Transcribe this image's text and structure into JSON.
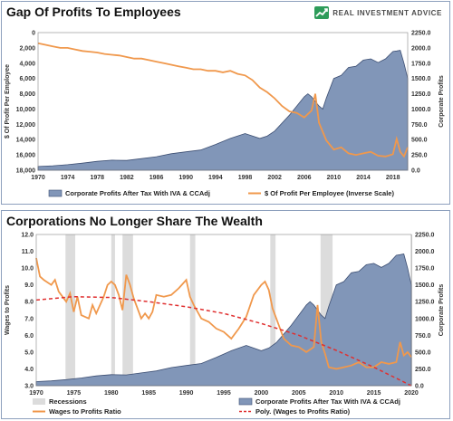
{
  "logo": {
    "text": "REAL INVESTMENT ADVICE",
    "icon": "trend-arrow-icon",
    "color": "#2e9c5a"
  },
  "colors": {
    "area_fill": "#8196b8",
    "area_stroke": "#3d4f73",
    "line": "#f0984c",
    "poly": "#e03030",
    "recession": "#dcdcdc"
  },
  "chart_data": [
    {
      "type": "area",
      "title": "Gap Of Profits To Employees",
      "xlabel": "",
      "ylabel_left": "$ Of Profit Per Employee",
      "ylabel_right": "Corporate Profits",
      "xlim": [
        1970,
        2020
      ],
      "x_ticks": [
        "1970",
        "1974",
        "1978",
        "1982",
        "1986",
        "1990",
        "1994",
        "1998",
        "2002",
        "2006",
        "2010",
        "2014",
        "2018"
      ],
      "y_left_ticks": [
        "0",
        "2,000",
        "4,000",
        "6,000",
        "8,000",
        "10,000",
        "12,000",
        "14,000",
        "16,000",
        "18,000"
      ],
      "y_left_inverted": true,
      "y_left_lim": [
        0,
        18000
      ],
      "y_right_ticks": [
        "0.0",
        "250.0",
        "500.0",
        "750.0",
        "1000.0",
        "1250.0",
        "1500.0",
        "1750.0",
        "2000.0",
        "2250.0"
      ],
      "y_right_lim": [
        0,
        2250
      ],
      "legend": [
        "Corporate Profits After Tax With IVA & CCAdj",
        "$ Of Profit Per Employee (Inverse Scale)"
      ],
      "series": [
        {
          "name": "Corporate Profits After Tax With IVA & CCAdj",
          "axis": "right",
          "x": [
            1970,
            1972,
            1974,
            1976,
            1978,
            1980,
            1982,
            1984,
            1986,
            1988,
            1990,
            1992,
            1994,
            1996,
            1998,
            2000,
            2001,
            2002,
            2004,
            2005,
            2006,
            2006.5,
            2007,
            2008,
            2008.5,
            2009,
            2010,
            2011,
            2012,
            2013,
            2014,
            2015,
            2016,
            2017,
            2018,
            2018.5,
            2019,
            2019.5,
            2020
          ],
          "values": [
            60,
            72,
            90,
            115,
            145,
            165,
            160,
            190,
            220,
            270,
            300,
            330,
            420,
            520,
            600,
            520,
            560,
            640,
            900,
            1050,
            1200,
            1250,
            1200,
            1050,
            1000,
            1180,
            1500,
            1550,
            1680,
            1700,
            1800,
            1820,
            1760,
            1820,
            1940,
            1950,
            1960,
            1750,
            1500
          ]
        },
        {
          "name": "$ Of Profit Per Employee (Inverse Scale)",
          "axis": "left",
          "x": [
            1970,
            1971,
            1972,
            1973,
            1974,
            1975,
            1976,
            1977,
            1978,
            1979,
            1980,
            1981,
            1982,
            1983,
            1984,
            1985,
            1986,
            1987,
            1988,
            1989,
            1990,
            1991,
            1992,
            1993,
            1994,
            1995,
            1996,
            1997,
            1998,
            1999,
            2000,
            2001,
            2002,
            2003,
            2004,
            2005,
            2006,
            2007,
            2007.5,
            2008,
            2009,
            2010,
            2011,
            2012,
            2013,
            2014,
            2015,
            2016,
            2017,
            2018,
            2018.5,
            2019,
            2019.5,
            2020
          ],
          "values": [
            1400,
            1600,
            1800,
            2000,
            2000,
            2200,
            2400,
            2500,
            2600,
            2800,
            2900,
            3000,
            3200,
            3400,
            3400,
            3600,
            3800,
            4000,
            4200,
            4400,
            4600,
            4800,
            4800,
            5000,
            5000,
            5200,
            5000,
            5400,
            5600,
            6200,
            7200,
            7800,
            8600,
            9600,
            10300,
            10500,
            11100,
            10200,
            8000,
            11800,
            14100,
            15300,
            15000,
            15800,
            16000,
            15800,
            15600,
            16100,
            16200,
            15900,
            13900,
            15600,
            16200,
            15000
          ]
        }
      ]
    },
    {
      "type": "area",
      "title": "Corporations No Longer Share The Wealth",
      "xlabel": "",
      "ylabel_left": "Wages to Profits",
      "ylabel_right": "Corporate Profits",
      "xlim": [
        1970,
        2020
      ],
      "x_ticks": [
        "1970",
        "1975",
        "1980",
        "1985",
        "1990",
        "1995",
        "2000",
        "2005",
        "2010",
        "2015",
        "2020"
      ],
      "y_left_ticks": [
        "3.0",
        "4.0",
        "5.0",
        "6.0",
        "7.0",
        "8.0",
        "9.0",
        "10.0",
        "11.0",
        "12.0"
      ],
      "y_left_lim": [
        3,
        12
      ],
      "y_right_ticks": [
        "0.0",
        "250.0",
        "500.0",
        "750.0",
        "1000.0",
        "1250.0",
        "1500.0",
        "1750.0",
        "2000.0",
        "2250.0"
      ],
      "y_right_lim": [
        0,
        2250
      ],
      "legend": [
        "Recessions",
        "Corporate Profits After Tax With IVA & CCAdj",
        "Wages to Profits Ratio",
        "Poly. (Wages to Profits Ratio)"
      ],
      "recessions": [
        [
          1973.9,
          1975.2
        ],
        [
          1980,
          1980.5
        ],
        [
          1981.5,
          1982.9
        ],
        [
          1990.5,
          1991.2
        ],
        [
          2001.2,
          2001.9
        ],
        [
          2007.9,
          2009.5
        ],
        [
          2020,
          2020.3
        ]
      ],
      "series": [
        {
          "name": "Corporate Profits After Tax With IVA & CCAdj",
          "axis": "right",
          "x": [
            1970,
            1972,
            1974,
            1976,
            1978,
            1980,
            1982,
            1984,
            1986,
            1988,
            1990,
            1992,
            1994,
            1996,
            1998,
            2000,
            2001,
            2002,
            2004,
            2005,
            2006,
            2006.5,
            2007,
            2008,
            2008.5,
            2009,
            2010,
            2011,
            2012,
            2013,
            2014,
            2015,
            2016,
            2017,
            2018,
            2018.5,
            2019,
            2019.5,
            2020
          ],
          "values": [
            60,
            72,
            90,
            115,
            145,
            165,
            160,
            190,
            220,
            270,
            300,
            330,
            420,
            520,
            600,
            520,
            560,
            640,
            900,
            1050,
            1200,
            1250,
            1200,
            1050,
            1000,
            1180,
            1500,
            1550,
            1680,
            1700,
            1800,
            1820,
            1760,
            1820,
            1940,
            1950,
            1960,
            1750,
            1500
          ]
        },
        {
          "name": "Wages to Profits Ratio",
          "axis": "left",
          "x": [
            1970,
            1970.5,
            1971,
            1972,
            1972.5,
            1973,
            1974,
            1974.5,
            1975,
            1975.5,
            1976,
            1977,
            1977.5,
            1978,
            1979,
            1979.5,
            1980,
            1980.5,
            1981,
            1981.5,
            1982,
            1982.5,
            1983,
            1984,
            1984.5,
            1985,
            1985.5,
            1986,
            1987,
            1988,
            1989,
            1990,
            1990.5,
            1991,
            1992,
            1993,
            1994,
            1995,
            1996,
            1997,
            1998,
            1999,
            2000,
            2000.5,
            2001,
            2001.5,
            2002,
            2003,
            2004,
            2005,
            2006,
            2007,
            2007.5,
            2008,
            2008.5,
            2009,
            2010,
            2011,
            2012,
            2013,
            2014,
            2015,
            2016,
            2017,
            2018,
            2018.5,
            2019,
            2019.5,
            2020
          ],
          "values": [
            10.6,
            9.5,
            9.3,
            9.0,
            9.3,
            8.6,
            8.0,
            8.5,
            7.4,
            8.3,
            7.2,
            7.0,
            7.8,
            7.3,
            8.3,
            9.0,
            9.2,
            9.0,
            8.4,
            7.5,
            9.6,
            9.0,
            8.2,
            7.0,
            7.3,
            7.0,
            7.4,
            8.4,
            8.3,
            8.4,
            8.8,
            9.3,
            8.3,
            7.8,
            7.0,
            6.8,
            6.4,
            6.2,
            5.8,
            6.4,
            7.1,
            8.4,
            9.0,
            9.2,
            8.7,
            7.6,
            7.0,
            5.8,
            5.4,
            5.3,
            5.0,
            5.3,
            7.8,
            5.6,
            4.9,
            4.1,
            4.0,
            4.1,
            4.2,
            4.4,
            4.1,
            4.1,
            4.4,
            4.3,
            4.4,
            5.6,
            4.8,
            5.0,
            4.7
          ]
        },
        {
          "name": "Poly. (Wages to Profits Ratio)",
          "axis": "left",
          "x": [
            1970,
            1975,
            1980,
            1985,
            1990,
            1995,
            2000,
            2005,
            2010,
            2015,
            2020
          ],
          "values": [
            8.1,
            8.3,
            8.25,
            8.0,
            7.7,
            7.3,
            6.7,
            6.0,
            5.1,
            4.1,
            3.0
          ]
        }
      ]
    }
  ]
}
